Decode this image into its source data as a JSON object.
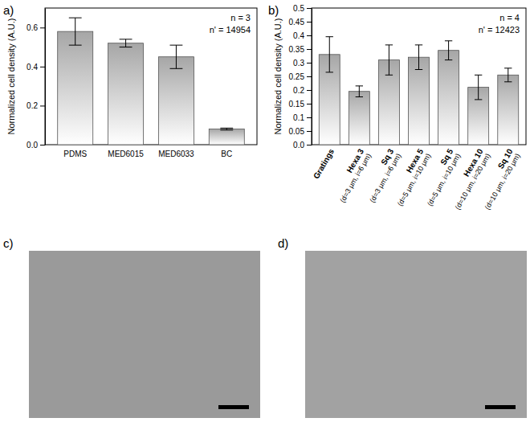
{
  "chart_data": [
    {
      "type": "bar",
      "title": "a)",
      "ylabel": "Normalized cell density (A.U.)",
      "annotations": [
        "n = 3",
        "n' = 14954"
      ],
      "categories": [
        "PDMS",
        "MED6015",
        "MED6033",
        "BC"
      ],
      "values": [
        0.58,
        0.52,
        0.45,
        0.08
      ],
      "errors": [
        0.07,
        0.02,
        0.06,
        0.005
      ],
      "color": "#a6a6a6",
      "ylim": [
        0,
        0.7
      ],
      "yticks": [
        {
          "value": 0,
          "label": "0.0"
        },
        0.2,
        0.4,
        0.6
      ]
    },
    {
      "type": "bar",
      "title": "b)",
      "ylabel": "Normalized cell density (A.U.)",
      "annotations": [
        "n = 4",
        "n' = 12423"
      ],
      "categories": [
        "Gratings",
        "Hexa 3",
        "Sq 3",
        "Hexa 5",
        "Sq 5",
        "Hexa 10",
        "Sq 10"
      ],
      "category_notes": [
        null,
        "(d=3 μm, i=6 μm)",
        "(d=3 μm, i=6 μm)",
        "(d=5 μm, i=10 μm)",
        "(d=5 μm, i=10 μm)",
        "(d=10 μm, i=20 μm)",
        "(d=10 μm, i=20 μm)"
      ],
      "values": [
        0.33,
        0.195,
        0.31,
        0.32,
        0.345,
        0.21,
        0.255
      ],
      "errors": [
        0.065,
        0.02,
        0.055,
        0.045,
        0.035,
        0.045,
        0.025
      ],
      "color": "#a6a6a6",
      "ylim": [
        0,
        0.5
      ],
      "yticks": [
        {
          "value": 0,
          "label": "0.0"
        },
        0.05,
        0.1,
        0.15,
        0.2,
        0.25,
        0.3,
        0.35,
        0.4,
        0.45,
        0.5
      ]
    }
  ],
  "images": [
    {
      "label": "c)"
    },
    {
      "label": "d)"
    }
  ]
}
